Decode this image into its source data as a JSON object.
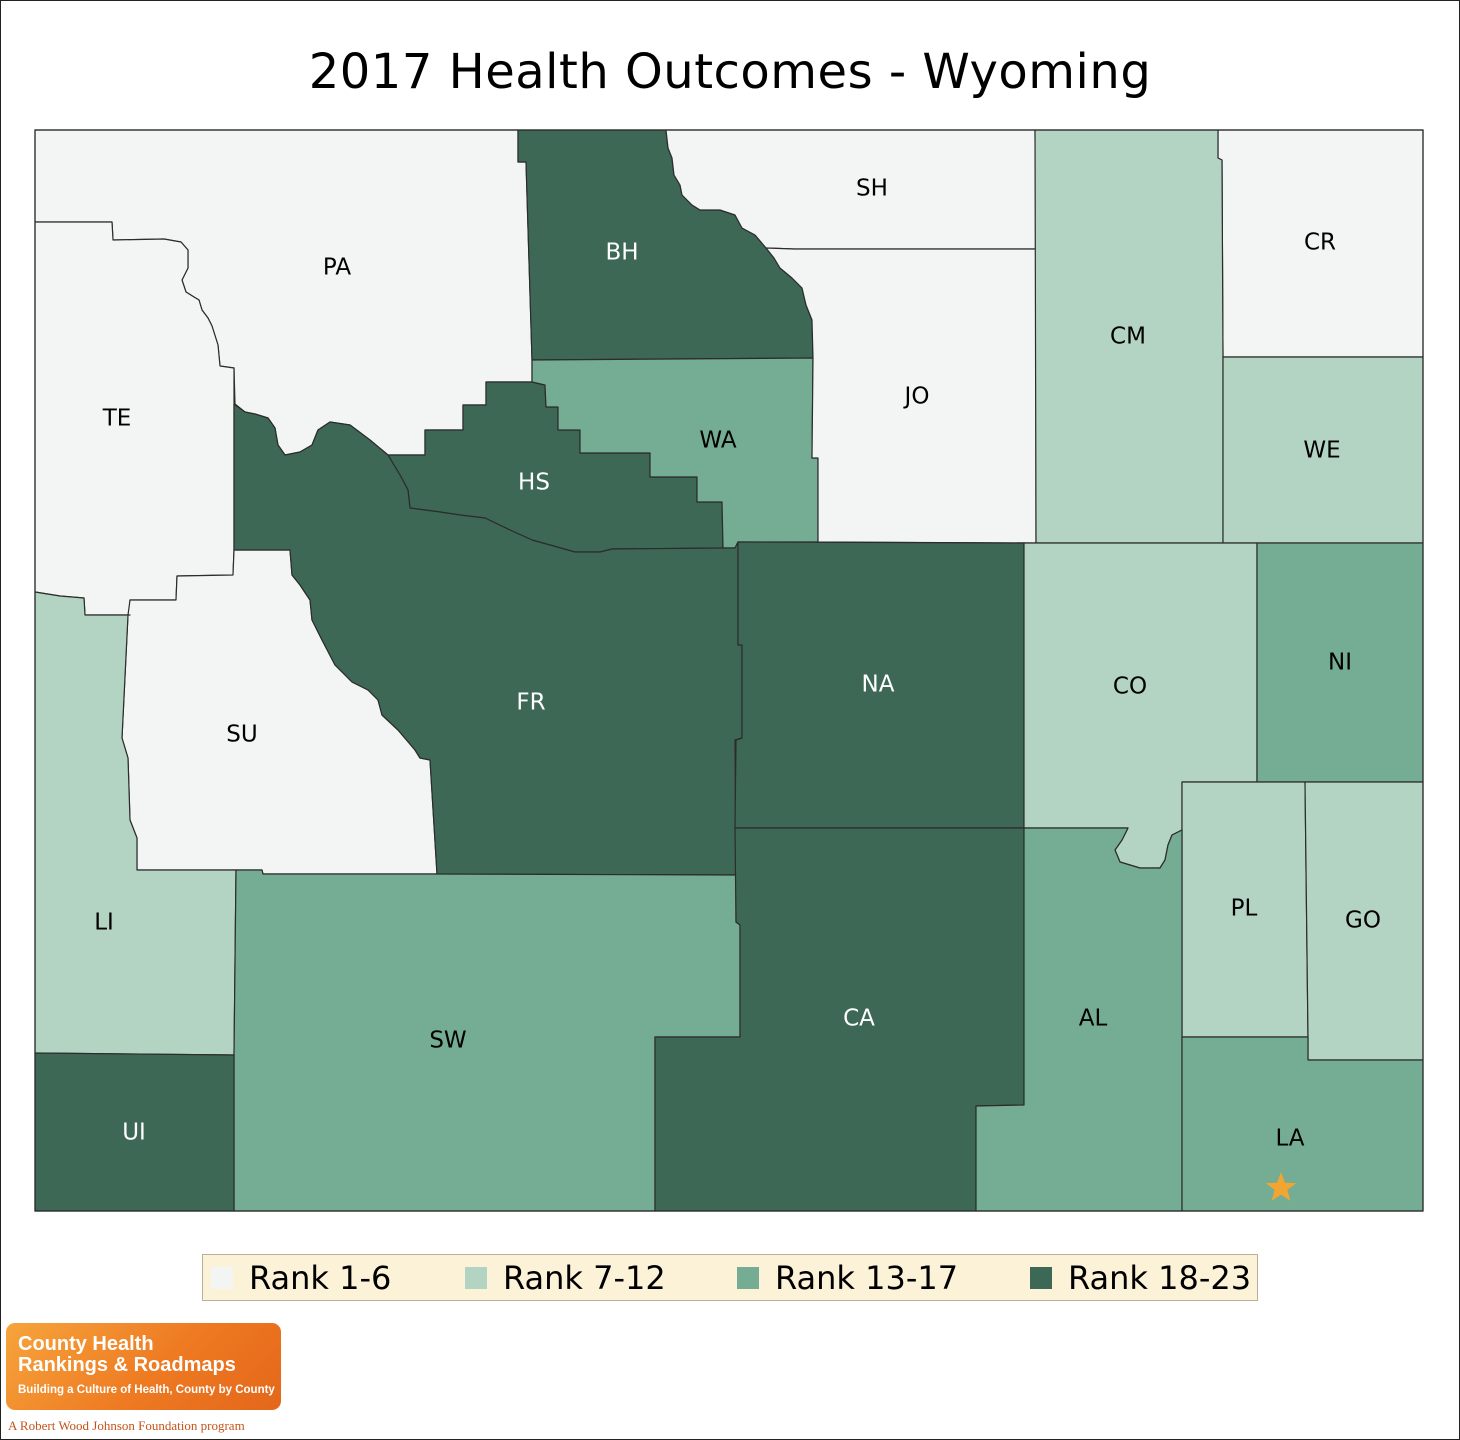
{
  "title": "2017 Health Outcomes - Wyoming",
  "colors": {
    "rank_1_6": "#f2f5f3",
    "rank_7_12": "#b3d3c3",
    "rank_13_17": "#74ad93",
    "rank_18_23": "#3d6856",
    "star": "#f3a531",
    "border": "#2c2c2c"
  },
  "legend": [
    {
      "label": "Rank 1-6",
      "color": "#f2f5f3"
    },
    {
      "label": "Rank 7-12",
      "color": "#b3d3c3"
    },
    {
      "label": "Rank 13-17",
      "color": "#74ad93"
    },
    {
      "label": "Rank 18-23",
      "color": "#3d6856"
    }
  ],
  "counties": [
    {
      "code": "PA",
      "rank_group": "Rank 1-6"
    },
    {
      "code": "BH",
      "rank_group": "Rank 18-23"
    },
    {
      "code": "SH",
      "rank_group": "Rank 1-6"
    },
    {
      "code": "CR",
      "rank_group": "Rank 1-6"
    },
    {
      "code": "TE",
      "rank_group": "Rank 1-6"
    },
    {
      "code": "HS",
      "rank_group": "Rank 18-23"
    },
    {
      "code": "WA",
      "rank_group": "Rank 13-17"
    },
    {
      "code": "JO",
      "rank_group": "Rank 1-6"
    },
    {
      "code": "CM",
      "rank_group": "Rank 7-12"
    },
    {
      "code": "WE",
      "rank_group": "Rank 7-12"
    },
    {
      "code": "SU",
      "rank_group": "Rank 1-6"
    },
    {
      "code": "FR",
      "rank_group": "Rank 18-23"
    },
    {
      "code": "NA",
      "rank_group": "Rank 18-23"
    },
    {
      "code": "CO",
      "rank_group": "Rank 7-12"
    },
    {
      "code": "NI",
      "rank_group": "Rank 13-17"
    },
    {
      "code": "LI",
      "rank_group": "Rank 7-12"
    },
    {
      "code": "PL",
      "rank_group": "Rank 7-12"
    },
    {
      "code": "GO",
      "rank_group": "Rank 7-12"
    },
    {
      "code": "SW",
      "rank_group": "Rank 13-17"
    },
    {
      "code": "CA",
      "rank_group": "Rank 18-23"
    },
    {
      "code": "AL",
      "rank_group": "Rank 13-17"
    },
    {
      "code": "UI",
      "rank_group": "Rank 18-23"
    },
    {
      "code": "LA",
      "rank_group": "Rank 13-17"
    }
  ],
  "marker": {
    "county": "LA",
    "icon": "star-icon"
  },
  "logo": {
    "line1": "County Health",
    "line2": "Rankings & Roadmaps",
    "tagline": "Building a Culture of Health, County by County",
    "program": "A Robert Wood Johnson Foundation program"
  }
}
